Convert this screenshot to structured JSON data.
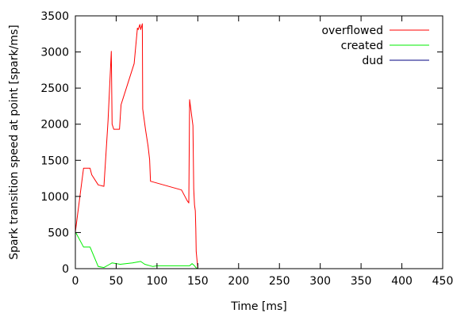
{
  "chart_data": {
    "type": "line",
    "title": "",
    "xlabel": "Time [ms]",
    "ylabel": "Spark transition speed at point [spark/ms]",
    "xlim": [
      0,
      450
    ],
    "ylim": [
      0,
      3500
    ],
    "xticks": [
      0,
      50,
      100,
      150,
      200,
      250,
      300,
      350,
      400,
      450
    ],
    "yticks": [
      0,
      500,
      1000,
      1500,
      2000,
      2500,
      3000,
      3500
    ],
    "grid": false,
    "legend_position": "top-right",
    "series": [
      {
        "name": "overflowed",
        "color": "#ff0000",
        "x": [
          0,
          10,
          18,
          20,
          28,
          35,
          40,
          44,
          45,
          47,
          54,
          56,
          72,
          76,
          77,
          79,
          80,
          82,
          82.5,
          86,
          89,
          91,
          92,
          130,
          137,
          139,
          140,
          144,
          145,
          146,
          147,
          147.5,
          148,
          150
        ],
        "y": [
          510,
          1390,
          1390,
          1300,
          1160,
          1140,
          2050,
          3010,
          2000,
          1930,
          1930,
          2270,
          2840,
          3330,
          3310,
          3380,
          3310,
          3390,
          2210,
          1920,
          1700,
          1510,
          1210,
          1090,
          940,
          910,
          2340,
          1980,
          1100,
          880,
          800,
          560,
          240,
          0
        ]
      },
      {
        "name": "created",
        "color": "#00ee00",
        "x": [
          0,
          10,
          18,
          28,
          35,
          42,
          45,
          55,
          70,
          80,
          85,
          95,
          100,
          110,
          130,
          140,
          143,
          146,
          148,
          150
        ],
        "y": [
          510,
          300,
          300,
          30,
          15,
          60,
          80,
          60,
          80,
          100,
          60,
          30,
          40,
          40,
          40,
          40,
          70,
          40,
          10,
          0
        ]
      },
      {
        "name": "dud",
        "color": "#000080",
        "x": [
          0,
          100,
          150,
          200,
          300,
          415
        ],
        "y": [
          0,
          0,
          0,
          0,
          0,
          0
        ]
      }
    ]
  }
}
